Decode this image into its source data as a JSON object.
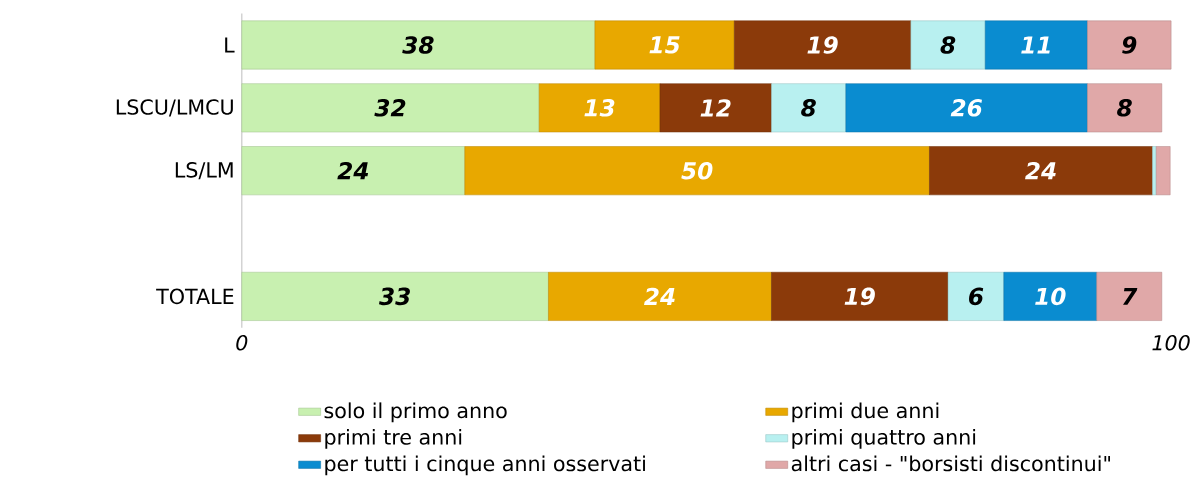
{
  "chart_data": {
    "type": "bar",
    "orientation": "horizontal",
    "stacked": true,
    "categories": [
      "L",
      "LSCU/LMCU",
      "LS/LM",
      null,
      "TOTALE"
    ],
    "series": [
      {
        "name": "solo il primo anno",
        "color": "#c8f0b0",
        "values": [
          38,
          32,
          24,
          null,
          33
        ],
        "value_labels": [
          "38",
          "32",
          "24",
          null,
          "33"
        ]
      },
      {
        "name": "primi due anni",
        "color": "#e8a800",
        "values": [
          15,
          13,
          50,
          null,
          24
        ],
        "value_labels": [
          "15",
          "13",
          "50",
          null,
          "24"
        ]
      },
      {
        "name": "primi tre anni",
        "color": "#8b3a0a",
        "values": [
          19,
          12,
          24,
          null,
          19
        ],
        "value_labels": [
          "19",
          "12",
          "24",
          null,
          "19"
        ]
      },
      {
        "name": "primi quattro anni",
        "color": "#b8f0f0",
        "values": [
          8,
          8,
          0.4,
          null,
          6
        ],
        "value_labels": [
          "8",
          "8",
          null,
          null,
          "6"
        ]
      },
      {
        "name": "per tutti i cinque anni osservati",
        "color": "#0a8cd0",
        "values": [
          11,
          26,
          null,
          null,
          10
        ],
        "value_labels": [
          "11",
          "26",
          null,
          null,
          "10"
        ]
      },
      {
        "name": "altri casi - \"borsisti discontinui\"",
        "color": "#e0a8a8",
        "values": [
          9,
          8,
          1.5,
          null,
          7
        ],
        "value_labels": [
          "9",
          "8",
          null,
          null,
          "7"
        ]
      }
    ],
    "xlim": [
      0,
      100
    ],
    "xticks": [
      0,
      100
    ],
    "legend": "bottom"
  }
}
